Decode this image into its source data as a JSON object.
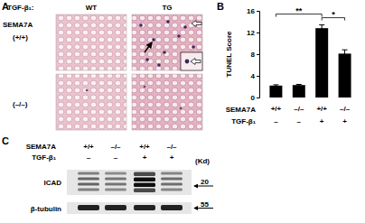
{
  "chart_data": {
    "type": "bar",
    "panel_letter": "B",
    "y_label": "TUNEL Score",
    "categories": [
      "+/+",
      "–/–",
      "+/+",
      "–/–"
    ],
    "category_title": "SEMA7A",
    "categories2": [
      "–",
      "–",
      "+",
      "+"
    ],
    "category2_title": "TGF-β₁",
    "values": [
      2.2,
      2.3,
      12.8,
      8.1
    ],
    "errors": [
      0.15,
      0.12,
      0.6,
      0.7
    ],
    "color": "#000000",
    "ylim": [
      0,
      16
    ],
    "yticks": [
      0,
      4,
      8,
      12,
      16
    ],
    "grid": false,
    "significance": [
      {
        "from": 0,
        "to": 2,
        "label": "**"
      },
      {
        "from": 2,
        "to": 3,
        "label": "*"
      }
    ]
  },
  "panel_a": {
    "letter": "A",
    "factor_label": "TGF-β₁:",
    "columns": [
      "WT",
      "TG"
    ],
    "row_title": "SEMA7A",
    "rows": [
      "(+/+)",
      "(–/–)"
    ]
  },
  "panel_c": {
    "letter": "C",
    "label_rows": [
      {
        "name": "SEMA7A",
        "labels": [
          "+/+",
          "–/–",
          "+/+",
          "–/–"
        ]
      },
      {
        "name": "TGF-β₁",
        "labels": [
          "–",
          "–",
          "+",
          "+"
        ]
      }
    ],
    "unit": "(Kd)",
    "blots": [
      {
        "name": "ICAD",
        "marker": 20
      },
      {
        "name": "β-tubulin",
        "marker": 55
      }
    ]
  }
}
